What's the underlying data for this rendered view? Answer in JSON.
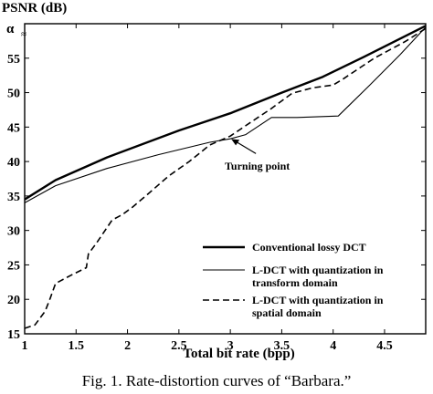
{
  "chart_data": {
    "type": "line",
    "ylabel": "PSNR (dB)",
    "xlabel": "Total bit rate (bpp)",
    "xlim": [
      1,
      4.9
    ],
    "ylim": [
      15,
      60
    ],
    "xticks": [
      1,
      1.5,
      2,
      2.5,
      3,
      3.5,
      4,
      4.5
    ],
    "yticks": [
      15,
      20,
      25,
      30,
      35,
      40,
      45,
      50,
      55
    ],
    "top_tick_label": "α",
    "grid": false,
    "legend_position": "lower-right",
    "series": [
      {
        "name": "Conventional lossy DCT",
        "style": "solid-thick",
        "x": [
          1.0,
          1.3,
          1.8,
          2.5,
          3.0,
          3.5,
          3.9,
          4.3,
          4.9
        ],
        "y": [
          34.5,
          37.3,
          40.6,
          44.5,
          47.0,
          50.0,
          52.3,
          55.2,
          59.7
        ]
      },
      {
        "name": "L-DCT with quantization in transform domain",
        "style": "solid-thin",
        "x": [
          1.0,
          1.3,
          1.8,
          2.3,
          2.8,
          3.0,
          3.15,
          3.4,
          3.65,
          4.05,
          4.35,
          4.65,
          4.9
        ],
        "y": [
          34.0,
          36.5,
          39.0,
          41.0,
          42.8,
          43.3,
          43.9,
          46.4,
          46.4,
          46.6,
          51.0,
          55.5,
          59.5
        ]
      },
      {
        "name": "L-DCT with quantization in spatial domain",
        "style": "dashed",
        "x": [
          1.0,
          1.1,
          1.2,
          1.25,
          1.3,
          1.35,
          1.45,
          1.6,
          1.62,
          1.7,
          1.85,
          1.95,
          2.05,
          2.2,
          2.4,
          2.6,
          2.8,
          3.0,
          3.2,
          3.4,
          3.6,
          3.8,
          4.0,
          4.1,
          4.4,
          4.7,
          4.9
        ],
        "y": [
          15.8,
          16.3,
          18.3,
          20.2,
          22.3,
          22.7,
          23.5,
          24.6,
          26.6,
          28.2,
          31.5,
          32.3,
          33.4,
          35.3,
          37.9,
          40.0,
          42.4,
          43.7,
          45.7,
          47.7,
          49.9,
          50.7,
          51.1,
          52.0,
          55.0,
          57.4,
          59.3
        ]
      }
    ],
    "annotations": [
      {
        "text": "Turning point",
        "x": 3.0,
        "y": 43.4
      }
    ]
  },
  "caption": "Fig. 1.   Rate-distortion curves of “Barbara.”"
}
